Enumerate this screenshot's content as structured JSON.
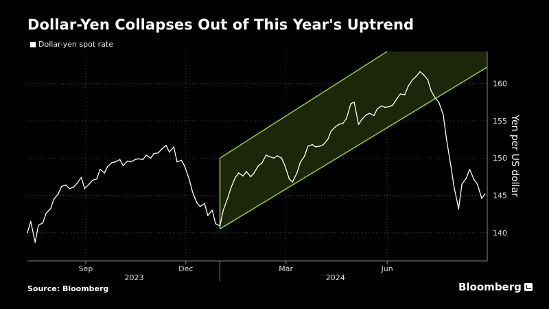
{
  "title": "Dollar-Yen Collapses Out of This Year's Uptrend",
  "legend_label": "Dollar-yen spot rate",
  "source": "Source: Bloomberg",
  "brand": "Bloomberg",
  "colors": {
    "background": "#000000",
    "series": "#ffffff",
    "channel": "#9acd32",
    "channel_fill": "#1c2608",
    "grid": "#444444"
  },
  "chart_data": {
    "type": "line",
    "title": "Dollar-Yen Collapses Out of This Year's Uptrend",
    "ylabel": "Yen per US dollar",
    "y_axis_side": "right",
    "ylim": [
      136.2,
      164.3
    ],
    "yticks": [
      140,
      145,
      150,
      155,
      160
    ],
    "xlim": [
      "2023-07-10",
      "2024-08-31"
    ],
    "xticks": [
      {
        "date": "2023-09-01",
        "label": "Sep"
      },
      {
        "date": "2023-12-01",
        "label": "Dec"
      },
      {
        "date": "2024-03-01",
        "label": "Mar"
      },
      {
        "date": "2024-06-01",
        "label": "Jun"
      }
    ],
    "year_labels": [
      {
        "date": "2023-10-15",
        "label": "2023"
      },
      {
        "date": "2024-04-15",
        "label": "2024"
      }
    ],
    "year_separator": "2024-01-01",
    "grid": true,
    "legend": "top-left",
    "channel": {
      "lower": [
        [
          "2024-01-01",
          140.5
        ],
        [
          "2024-08-31",
          162.2
        ]
      ],
      "upper": [
        [
          "2024-01-01",
          150.0
        ],
        [
          "2024-06-01",
          164.3
        ],
        [
          "2024-08-31",
          164.3
        ]
      ]
    },
    "series": [
      {
        "name": "Dollar-yen spot rate",
        "x": [
          "2023-07-10",
          "2023-07-13",
          "2023-07-17",
          "2023-07-20",
          "2023-07-24",
          "2023-07-27",
          "2023-07-31",
          "2023-08-03",
          "2023-08-07",
          "2023-08-10",
          "2023-08-14",
          "2023-08-17",
          "2023-08-21",
          "2023-08-24",
          "2023-08-28",
          "2023-08-31",
          "2023-09-04",
          "2023-09-07",
          "2023-09-11",
          "2023-09-14",
          "2023-09-18",
          "2023-09-21",
          "2023-09-25",
          "2023-09-28",
          "2023-10-02",
          "2023-10-05",
          "2023-10-09",
          "2023-10-12",
          "2023-10-16",
          "2023-10-19",
          "2023-10-23",
          "2023-10-26",
          "2023-10-30",
          "2023-11-02",
          "2023-11-06",
          "2023-11-09",
          "2023-11-13",
          "2023-11-16",
          "2023-11-20",
          "2023-11-23",
          "2023-11-27",
          "2023-11-30",
          "2023-12-04",
          "2023-12-07",
          "2023-12-11",
          "2023-12-14",
          "2023-12-18",
          "2023-12-21",
          "2023-12-25",
          "2023-12-28",
          "2024-01-01",
          "2024-01-04",
          "2024-01-08",
          "2024-01-11",
          "2024-01-15",
          "2024-01-18",
          "2024-01-22",
          "2024-01-25",
          "2024-01-29",
          "2024-02-01",
          "2024-02-05",
          "2024-02-08",
          "2024-02-12",
          "2024-02-15",
          "2024-02-19",
          "2024-02-22",
          "2024-02-26",
          "2024-02-29",
          "2024-03-04",
          "2024-03-07",
          "2024-03-11",
          "2024-03-14",
          "2024-03-18",
          "2024-03-21",
          "2024-03-25",
          "2024-03-28",
          "2024-04-01",
          "2024-04-04",
          "2024-04-08",
          "2024-04-11",
          "2024-04-15",
          "2024-04-18",
          "2024-04-22",
          "2024-04-25",
          "2024-04-29",
          "2024-05-02",
          "2024-05-06",
          "2024-05-09",
          "2024-05-13",
          "2024-05-16",
          "2024-05-20",
          "2024-05-23",
          "2024-05-27",
          "2024-05-30",
          "2024-06-03",
          "2024-06-06",
          "2024-06-10",
          "2024-06-13",
          "2024-06-17",
          "2024-06-20",
          "2024-06-24",
          "2024-06-27",
          "2024-07-01",
          "2024-07-04",
          "2024-07-08",
          "2024-07-11",
          "2024-07-15",
          "2024-07-18",
          "2024-07-22",
          "2024-07-25",
          "2024-07-29",
          "2024-08-01",
          "2024-08-05",
          "2024-08-08",
          "2024-08-12",
          "2024-08-15",
          "2024-08-19",
          "2024-08-22",
          "2024-08-26",
          "2024-08-29"
        ],
        "y": [
          140.0,
          141.5,
          138.7,
          141.0,
          141.3,
          142.6,
          143.2,
          144.5,
          145.2,
          146.2,
          146.4,
          145.9,
          146.1,
          146.6,
          147.4,
          145.9,
          146.5,
          147.0,
          147.2,
          148.5,
          148.0,
          148.9,
          149.4,
          149.5,
          149.8,
          149.0,
          149.6,
          149.5,
          149.8,
          149.9,
          149.8,
          150.4,
          150.0,
          150.6,
          150.7,
          151.2,
          151.7,
          150.8,
          151.5,
          149.5,
          149.7,
          148.9,
          147.2,
          145.5,
          144.0,
          143.5,
          143.9,
          142.3,
          143.0,
          141.2,
          140.9,
          143.0,
          144.6,
          146.0,
          147.4,
          148.0,
          147.6,
          148.2,
          147.5,
          148.0,
          149.0,
          149.3,
          150.4,
          150.2,
          150.0,
          150.3,
          150.0,
          149.0,
          147.2,
          146.8,
          148.0,
          149.4,
          150.3,
          151.6,
          151.8,
          151.5,
          151.6,
          151.8,
          152.5,
          153.6,
          154.2,
          154.5,
          154.7,
          155.3,
          157.3,
          157.5,
          154.5,
          155.2,
          155.8,
          156.0,
          155.7,
          156.6,
          157.0,
          156.8,
          156.9,
          157.1,
          158.0,
          158.6,
          158.5,
          159.6,
          160.5,
          160.9,
          161.6,
          161.2,
          160.5,
          159.0,
          158.0,
          157.5,
          155.8,
          152.5,
          148.9,
          146.0,
          143.2,
          146.5,
          147.3,
          148.5,
          147.1,
          146.5,
          144.6,
          145.2
        ]
      }
    ]
  }
}
